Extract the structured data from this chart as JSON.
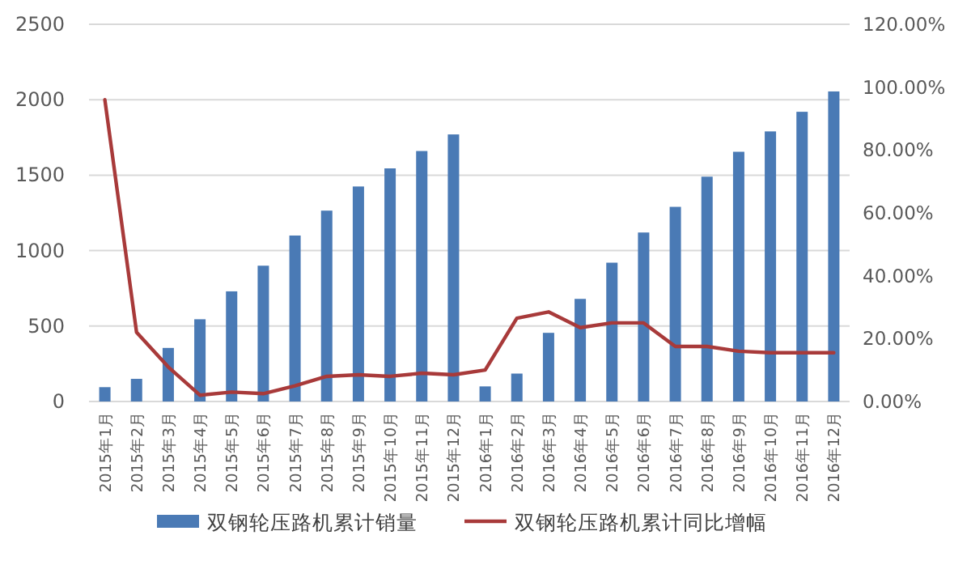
{
  "chart_data": {
    "type": "bar",
    "categories": [
      "2015年1月",
      "2015年2月",
      "2015年3月",
      "2015年4月",
      "2015年5月",
      "2015年6月",
      "2015年7月",
      "2015年8月",
      "2015年9月",
      "2015年10月",
      "2015年11月",
      "2015年12月",
      "2016年1月",
      "2016年2月",
      "2016年3月",
      "2016年4月",
      "2016年5月",
      "2016年6月",
      "2016年7月",
      "2016年8月",
      "2016年9月",
      "2016年10月",
      "2016年11月",
      "2016年12月"
    ],
    "series": [
      {
        "name": "双钢轮压路机累计销量",
        "color": "#4a7ab5",
        "values": [
          95,
          150,
          355,
          545,
          730,
          900,
          1100,
          1265,
          1425,
          1545,
          1660,
          1770,
          100,
          185,
          455,
          680,
          920,
          1120,
          1290,
          1490,
          1655,
          1790,
          1920,
          2055
        ]
      },
      {
        "name": "双钢轮压路机累计同比增幅",
        "type": "line",
        "axis": "y2",
        "color": "#a83a3a",
        "values": [
          96,
          22,
          11,
          2,
          3,
          2.5,
          5,
          8,
          8.5,
          8,
          9,
          8.5,
          10,
          26.5,
          28.5,
          23.5,
          25,
          25,
          17.5,
          17.5,
          16,
          15.5,
          15.5,
          15.5
        ]
      }
    ],
    "ylim": [
      0,
      2500
    ],
    "yticks": [
      0,
      500,
      1000,
      1500,
      2000,
      2500
    ],
    "y2lim": [
      0,
      120
    ],
    "y2ticks": [
      {
        "value": 0,
        "label": "0.00%"
      },
      {
        "value": 20,
        "label": "20.00%"
      },
      {
        "value": 40,
        "label": "40.00%"
      },
      {
        "value": 60,
        "label": "60.00%"
      },
      {
        "value": 80,
        "label": "80.00%"
      },
      {
        "value": 100,
        "label": "100.00%"
      },
      {
        "value": 120,
        "label": "120.00%"
      }
    ],
    "grid": "y",
    "legend": "bottom",
    "marker": "none",
    "line_style": "solid"
  }
}
